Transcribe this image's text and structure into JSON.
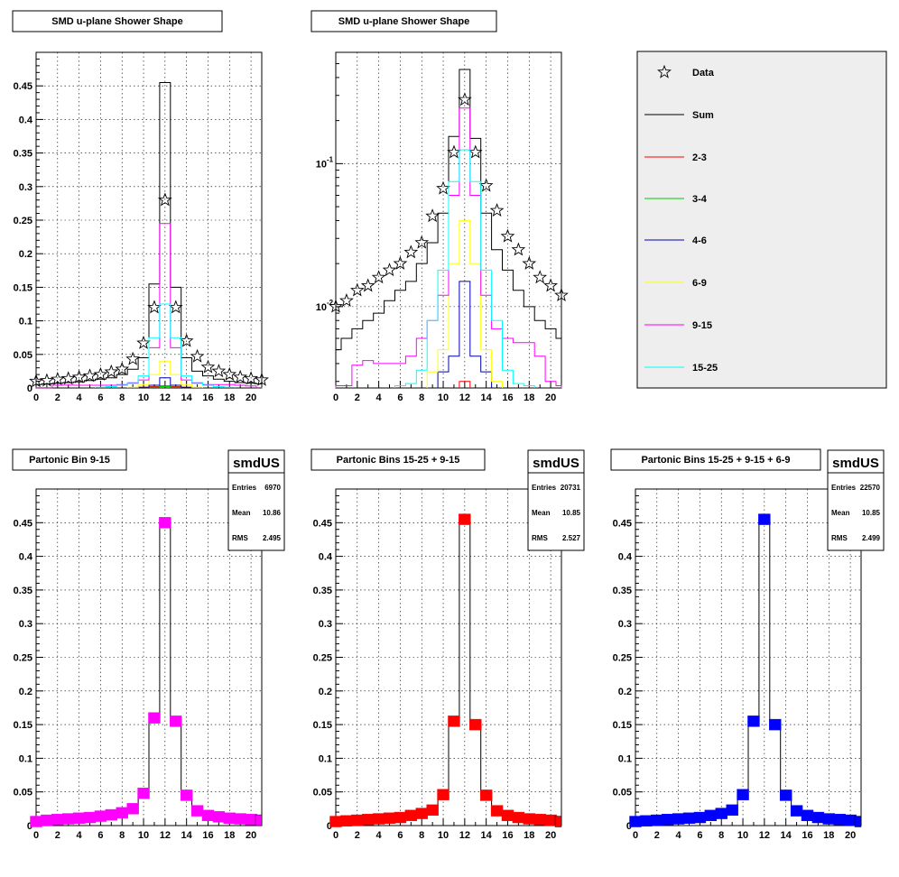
{
  "colors": {
    "sum": "#000000",
    "bin_2_3": "#ff0000",
    "bin_3_4": "#00cc00",
    "bin_4_6": "#0000ff",
    "bin_6_9": "#ffff00",
    "bin_9_15": "#ff00ff",
    "bin_15_25": "#00ffff",
    "legend_bg": "#eeeeee"
  },
  "legend": {
    "items": [
      {
        "label": "Data",
        "kind": "star",
        "color": "#000000"
      },
      {
        "label": "Sum",
        "kind": "line",
        "color": "#000000"
      },
      {
        "label": "2-3",
        "kind": "line",
        "color": "#ff0000"
      },
      {
        "label": "3-4",
        "kind": "line",
        "color": "#00cc00"
      },
      {
        "label": "4-6",
        "kind": "line",
        "color": "#0000aa"
      },
      {
        "label": "6-9",
        "kind": "line",
        "color": "#ffff00"
      },
      {
        "label": "9-15",
        "kind": "line",
        "color": "#ff00ff"
      },
      {
        "label": "15-25",
        "kind": "line",
        "color": "#00ffff"
      }
    ]
  },
  "chart_data": [
    {
      "type": "line",
      "title": "SMD u-plane Shower Shape",
      "xlim": [
        0,
        21
      ],
      "ylim": [
        0,
        0.5
      ],
      "yscale": "linear",
      "xticks": [
        "0",
        "2",
        "4",
        "6",
        "8",
        "10",
        "12",
        "14",
        "16",
        "18",
        "20"
      ],
      "yticks": [
        "0",
        "0.05",
        "0.1",
        "0.15",
        "0.2",
        "0.25",
        "0.3",
        "0.35",
        "0.4",
        "0.45"
      ],
      "grid": true,
      "series": [
        {
          "name": "Data",
          "style": "star",
          "color": "#000000",
          "values": [
            0.01,
            0.011,
            0.013,
            0.014,
            0.016,
            0.018,
            0.02,
            0.024,
            0.028,
            0.043,
            0.067,
            0.12,
            0.28,
            0.12,
            0.07,
            0.047,
            0.031,
            0.025,
            0.02,
            0.016,
            0.014,
            0.012
          ]
        },
        {
          "name": "Sum",
          "style": "step",
          "color": "#000000",
          "values": [
            0.005,
            0.006,
            0.007,
            0.008,
            0.009,
            0.011,
            0.013,
            0.015,
            0.02,
            0.028,
            0.045,
            0.155,
            0.455,
            0.15,
            0.045,
            0.025,
            0.018,
            0.013,
            0.01,
            0.008,
            0.007,
            0.006
          ]
        },
        {
          "name": "2-3",
          "style": "step",
          "color": "#ff0000",
          "values": [
            0,
            0,
            0,
            0,
            0,
            0,
            0,
            0,
            0,
            0,
            0.001,
            0.002,
            0.003,
            0.002,
            0.001,
            0,
            0,
            0,
            0,
            0,
            0,
            0
          ]
        },
        {
          "name": "3-4",
          "style": "step",
          "color": "#00cc00",
          "values": [
            0,
            0,
            0,
            0,
            0,
            0,
            0,
            0,
            0,
            0,
            0,
            0.001,
            0.002,
            0.001,
            0,
            0,
            0,
            0,
            0,
            0,
            0,
            0
          ]
        },
        {
          "name": "4-6",
          "style": "step",
          "color": "#0000aa",
          "values": [
            0,
            0,
            0,
            0,
            0,
            0,
            0,
            0,
            0,
            0,
            0.001,
            0.004,
            0.015,
            0.004,
            0.001,
            0,
            0,
            0,
            0,
            0,
            0,
            0
          ]
        },
        {
          "name": "6-9",
          "style": "step",
          "color": "#ffff00",
          "values": [
            0,
            0,
            0,
            0,
            0,
            0,
            0,
            0,
            0,
            0.001,
            0.005,
            0.02,
            0.04,
            0.02,
            0.005,
            0.001,
            0,
            0,
            0,
            0,
            0,
            0
          ]
        },
        {
          "name": "9-15",
          "style": "step",
          "color": "#ff00ff",
          "values": [
            0.0004,
            0.0004,
            0.004,
            0.0045,
            0.004,
            0.004,
            0.004,
            0.004,
            0.005,
            0.007,
            0.012,
            0.06,
            0.245,
            0.06,
            0.012,
            0.007,
            0.005,
            0.005,
            0.005,
            0.004,
            0.003,
            0.0005
          ]
        },
        {
          "name": "15-25",
          "style": "step",
          "color": "#00ffff",
          "values": [
            0,
            0,
            0,
            0,
            0,
            0,
            0.001,
            0.002,
            0.004,
            0.008,
            0.018,
            0.075,
            0.125,
            0.075,
            0.018,
            0.008,
            0.004,
            0.002,
            0.001,
            0,
            0,
            0
          ]
        }
      ]
    },
    {
      "type": "line",
      "title": "SMD u-plane Shower Shape",
      "xlim": [
        0,
        21
      ],
      "ylim": [
        0.0027,
        0.6
      ],
      "yscale": "log",
      "xticks": [
        "0",
        "2",
        "4",
        "6",
        "8",
        "10",
        "12",
        "14",
        "16",
        "18",
        "20"
      ],
      "yticks": [
        "10^-2",
        "10^-1"
      ],
      "grid": true,
      "series": [
        {
          "name": "Data",
          "style": "star",
          "color": "#000000",
          "values": [
            0.01,
            0.011,
            0.013,
            0.014,
            0.016,
            0.018,
            0.02,
            0.024,
            0.028,
            0.043,
            0.067,
            0.12,
            0.28,
            0.12,
            0.07,
            0.047,
            0.031,
            0.025,
            0.02,
            0.016,
            0.014,
            0.012
          ]
        },
        {
          "name": "Sum",
          "style": "step",
          "color": "#000000",
          "values": [
            0.005,
            0.006,
            0.007,
            0.008,
            0.009,
            0.011,
            0.013,
            0.015,
            0.02,
            0.028,
            0.045,
            0.155,
            0.455,
            0.15,
            0.045,
            0.025,
            0.018,
            0.013,
            0.01,
            0.008,
            0.007,
            0.006
          ]
        },
        {
          "name": "2-3",
          "style": "step",
          "color": "#ff0000",
          "values": [
            0,
            0,
            0,
            0,
            0,
            0,
            0,
            0,
            0,
            0,
            0.001,
            0.002,
            0.003,
            0.002,
            0.001,
            0,
            0,
            0,
            0,
            0,
            0,
            0
          ]
        },
        {
          "name": "3-4",
          "style": "step",
          "color": "#00cc00",
          "values": [
            0,
            0,
            0,
            0,
            0,
            0,
            0,
            0,
            0,
            0,
            0,
            0.001,
            0.002,
            0.001,
            0,
            0,
            0,
            0,
            0,
            0,
            0,
            0
          ]
        },
        {
          "name": "4-6",
          "style": "step",
          "color": "#0000aa",
          "values": [
            0,
            0,
            0,
            0,
            0,
            0,
            0,
            0,
            0,
            0,
            0.0035,
            0.0045,
            0.015,
            0.0045,
            0.0035,
            0,
            0,
            0,
            0,
            0,
            0,
            0
          ]
        },
        {
          "name": "6-9",
          "style": "step",
          "color": "#ffff00",
          "values": [
            0,
            0,
            0,
            0,
            0,
            0,
            0,
            0,
            0,
            0.0035,
            0.005,
            0.02,
            0.04,
            0.02,
            0.005,
            0.003,
            0,
            0,
            0,
            0,
            0,
            0
          ]
        },
        {
          "name": "9-15",
          "style": "step",
          "color": "#ff00ff",
          "values": [
            0.0028,
            0.0028,
            0.0039,
            0.0042,
            0.004,
            0.004,
            0.004,
            0.0045,
            0.006,
            0.008,
            0.012,
            0.06,
            0.245,
            0.06,
            0.012,
            0.007,
            0.006,
            0.0056,
            0.0056,
            0.0045,
            0.003,
            0.0028
          ]
        },
        {
          "name": "15-25",
          "style": "step",
          "color": "#00ffff",
          "values": [
            0,
            0,
            0,
            0,
            0,
            0,
            0.0028,
            0.0029,
            0.0036,
            0.008,
            0.018,
            0.075,
            0.125,
            0.075,
            0.018,
            0.008,
            0.0036,
            0.0029,
            0.0028,
            0,
            0,
            0
          ]
        }
      ]
    },
    {
      "type": "bar",
      "title": "Partonic Bin 9-15",
      "stats": {
        "name": "smdUS",
        "rows": [
          [
            "Entries",
            "6970"
          ],
          [
            "Mean",
            "10.86"
          ],
          [
            "RMS",
            "2.495"
          ]
        ]
      },
      "marker_color": "#ff00ff",
      "xlim": [
        0,
        21
      ],
      "ylim": [
        0,
        0.5
      ],
      "xticks": [
        "0",
        "2",
        "4",
        "6",
        "8",
        "10",
        "12",
        "14",
        "16",
        "18",
        "20"
      ],
      "yticks": [
        "0",
        "0.05",
        "0.1",
        "0.15",
        "0.2",
        "0.25",
        "0.3",
        "0.35",
        "0.4",
        "0.45"
      ],
      "grid": true,
      "values": [
        0.006,
        0.008,
        0.009,
        0.01,
        0.011,
        0.012,
        0.014,
        0.016,
        0.019,
        0.025,
        0.048,
        0.16,
        0.45,
        0.155,
        0.045,
        0.022,
        0.015,
        0.013,
        0.011,
        0.01,
        0.009,
        0.008
      ]
    },
    {
      "type": "bar",
      "title": "Partonic Bins 15-25 + 9-15",
      "stats": {
        "name": "smdUS",
        "rows": [
          [
            "Entries",
            "20731"
          ],
          [
            "Mean",
            "10.85"
          ],
          [
            "RMS",
            "2.527"
          ]
        ]
      },
      "marker_color": "#ff0000",
      "xlim": [
        0,
        21
      ],
      "ylim": [
        0,
        0.5
      ],
      "xticks": [
        "0",
        "2",
        "4",
        "6",
        "8",
        "10",
        "12",
        "14",
        "16",
        "18",
        "20"
      ],
      "yticks": [
        "0",
        "0.05",
        "0.1",
        "0.15",
        "0.2",
        "0.25",
        "0.3",
        "0.35",
        "0.4",
        "0.45"
      ],
      "grid": true,
      "values": [
        0.006,
        0.007,
        0.008,
        0.009,
        0.01,
        0.011,
        0.012,
        0.015,
        0.018,
        0.023,
        0.046,
        0.155,
        0.455,
        0.15,
        0.045,
        0.022,
        0.015,
        0.012,
        0.01,
        0.009,
        0.008,
        0.006
      ]
    },
    {
      "type": "bar",
      "title": "Partonic Bins 15-25 + 9-15 + 6-9",
      "stats": {
        "name": "smdUS",
        "rows": [
          [
            "Entries",
            "22570"
          ],
          [
            "Mean",
            "10.85"
          ],
          [
            "RMS",
            "2.499"
          ]
        ]
      },
      "marker_color": "#0000ff",
      "xlim": [
        0,
        21
      ],
      "ylim": [
        0,
        0.5
      ],
      "xticks": [
        "0",
        "2",
        "4",
        "6",
        "8",
        "10",
        "12",
        "14",
        "16",
        "18",
        "20"
      ],
      "yticks": [
        "0",
        "0.05",
        "0.1",
        "0.15",
        "0.2",
        "0.25",
        "0.3",
        "0.35",
        "0.4",
        "0.45"
      ],
      "grid": true,
      "values": [
        0.006,
        0.007,
        0.008,
        0.009,
        0.01,
        0.011,
        0.012,
        0.015,
        0.018,
        0.023,
        0.046,
        0.155,
        0.455,
        0.15,
        0.045,
        0.022,
        0.015,
        0.012,
        0.01,
        0.009,
        0.008,
        0.006
      ]
    }
  ]
}
